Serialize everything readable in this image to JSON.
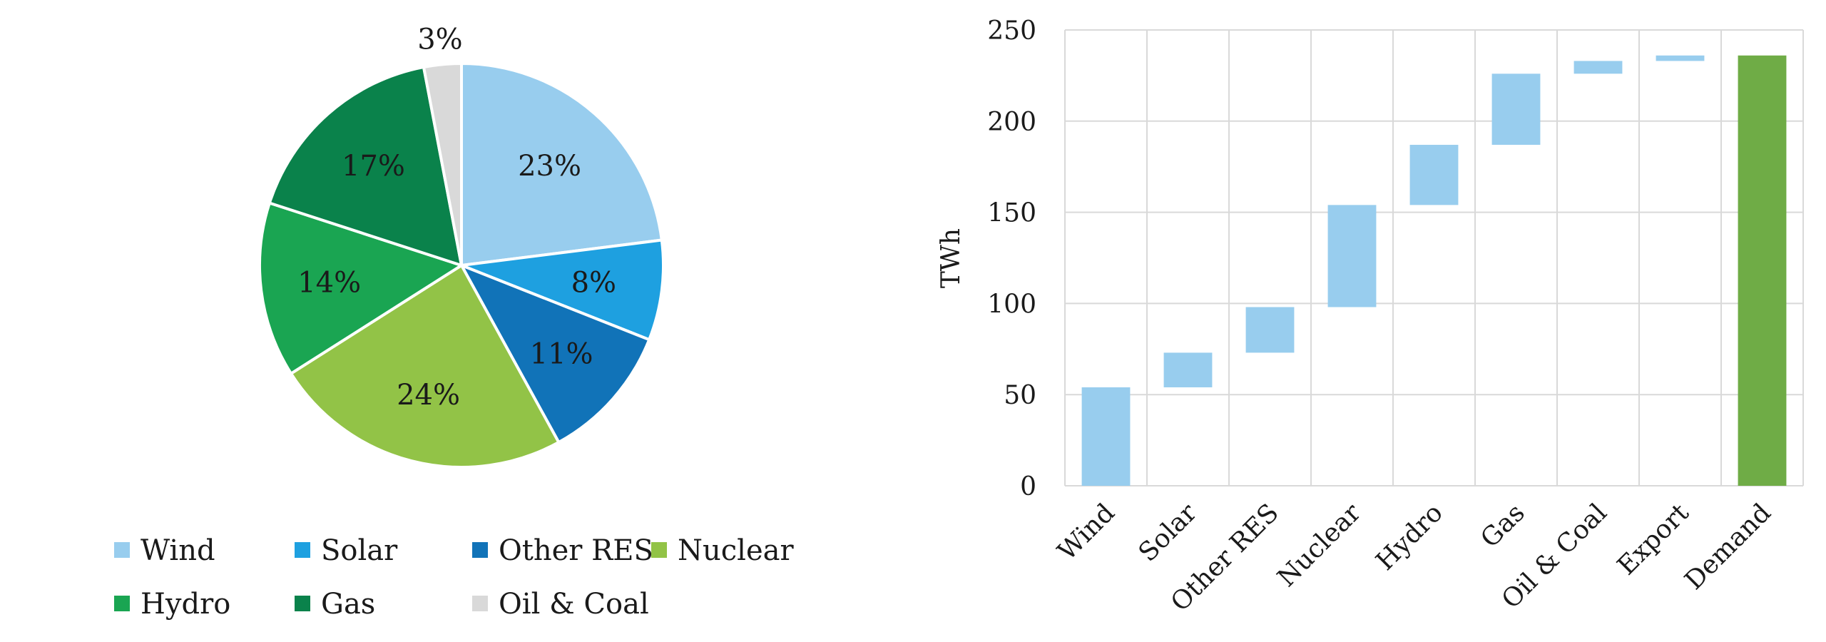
{
  "chart_data": [
    {
      "type": "pie",
      "title": "",
      "slices": [
        {
          "name": "Wind",
          "value": 23,
          "label": "23%",
          "color": "#98cdee"
        },
        {
          "name": "Solar",
          "value": 8,
          "label": "8%",
          "color": "#1ea0e0"
        },
        {
          "name": "Other RES",
          "value": 11,
          "label": "11%",
          "color": "#1173b8"
        },
        {
          "name": "Nuclear",
          "value": 24,
          "label": "24%",
          "color": "#92c347"
        },
        {
          "name": "Hydro",
          "value": 14,
          "label": "14%",
          "color": "#1aa552"
        },
        {
          "name": "Gas",
          "value": 17,
          "label": "17%",
          "color": "#0a824b"
        },
        {
          "name": "Oil & Coal",
          "value": 3,
          "label": "3%",
          "color": "#d9d9d9"
        }
      ],
      "legend_placement": "bottom",
      "legend": [
        "Wind",
        "Solar",
        "Other RES",
        "Nuclear",
        "Hydro",
        "Gas",
        "Oil & Coal"
      ]
    },
    {
      "type": "bar",
      "subtype": "waterfall",
      "title": "",
      "xlabel": "",
      "ylabel": "TWh",
      "ylim": [
        0,
        250
      ],
      "yticks": [
        "0",
        "50",
        "100",
        "150",
        "200",
        "250"
      ],
      "grid": true,
      "categories": [
        "Wind",
        "Solar",
        "Other RES",
        "Nuclear",
        "Hydro",
        "Gas",
        "Oil & Coal",
        "Export",
        "Demand"
      ],
      "bars": [
        {
          "category": "Wind",
          "start": 0,
          "end": 54,
          "color": "#98cdee"
        },
        {
          "category": "Solar",
          "start": 54,
          "end": 73,
          "color": "#98cdee"
        },
        {
          "category": "Other RES",
          "start": 73,
          "end": 98,
          "color": "#98cdee"
        },
        {
          "category": "Nuclear",
          "start": 98,
          "end": 154,
          "color": "#98cdee"
        },
        {
          "category": "Hydro",
          "start": 154,
          "end": 187,
          "color": "#98cdee"
        },
        {
          "category": "Gas",
          "start": 187,
          "end": 226,
          "color": "#98cdee"
        },
        {
          "category": "Oil & Coal",
          "start": 226,
          "end": 233,
          "color": "#98cdee"
        },
        {
          "category": "Export",
          "start": 233,
          "end": 236,
          "color": "#98cdee"
        },
        {
          "category": "Demand",
          "start": 0,
          "end": 236,
          "color": "#6fac46"
        }
      ]
    }
  ]
}
